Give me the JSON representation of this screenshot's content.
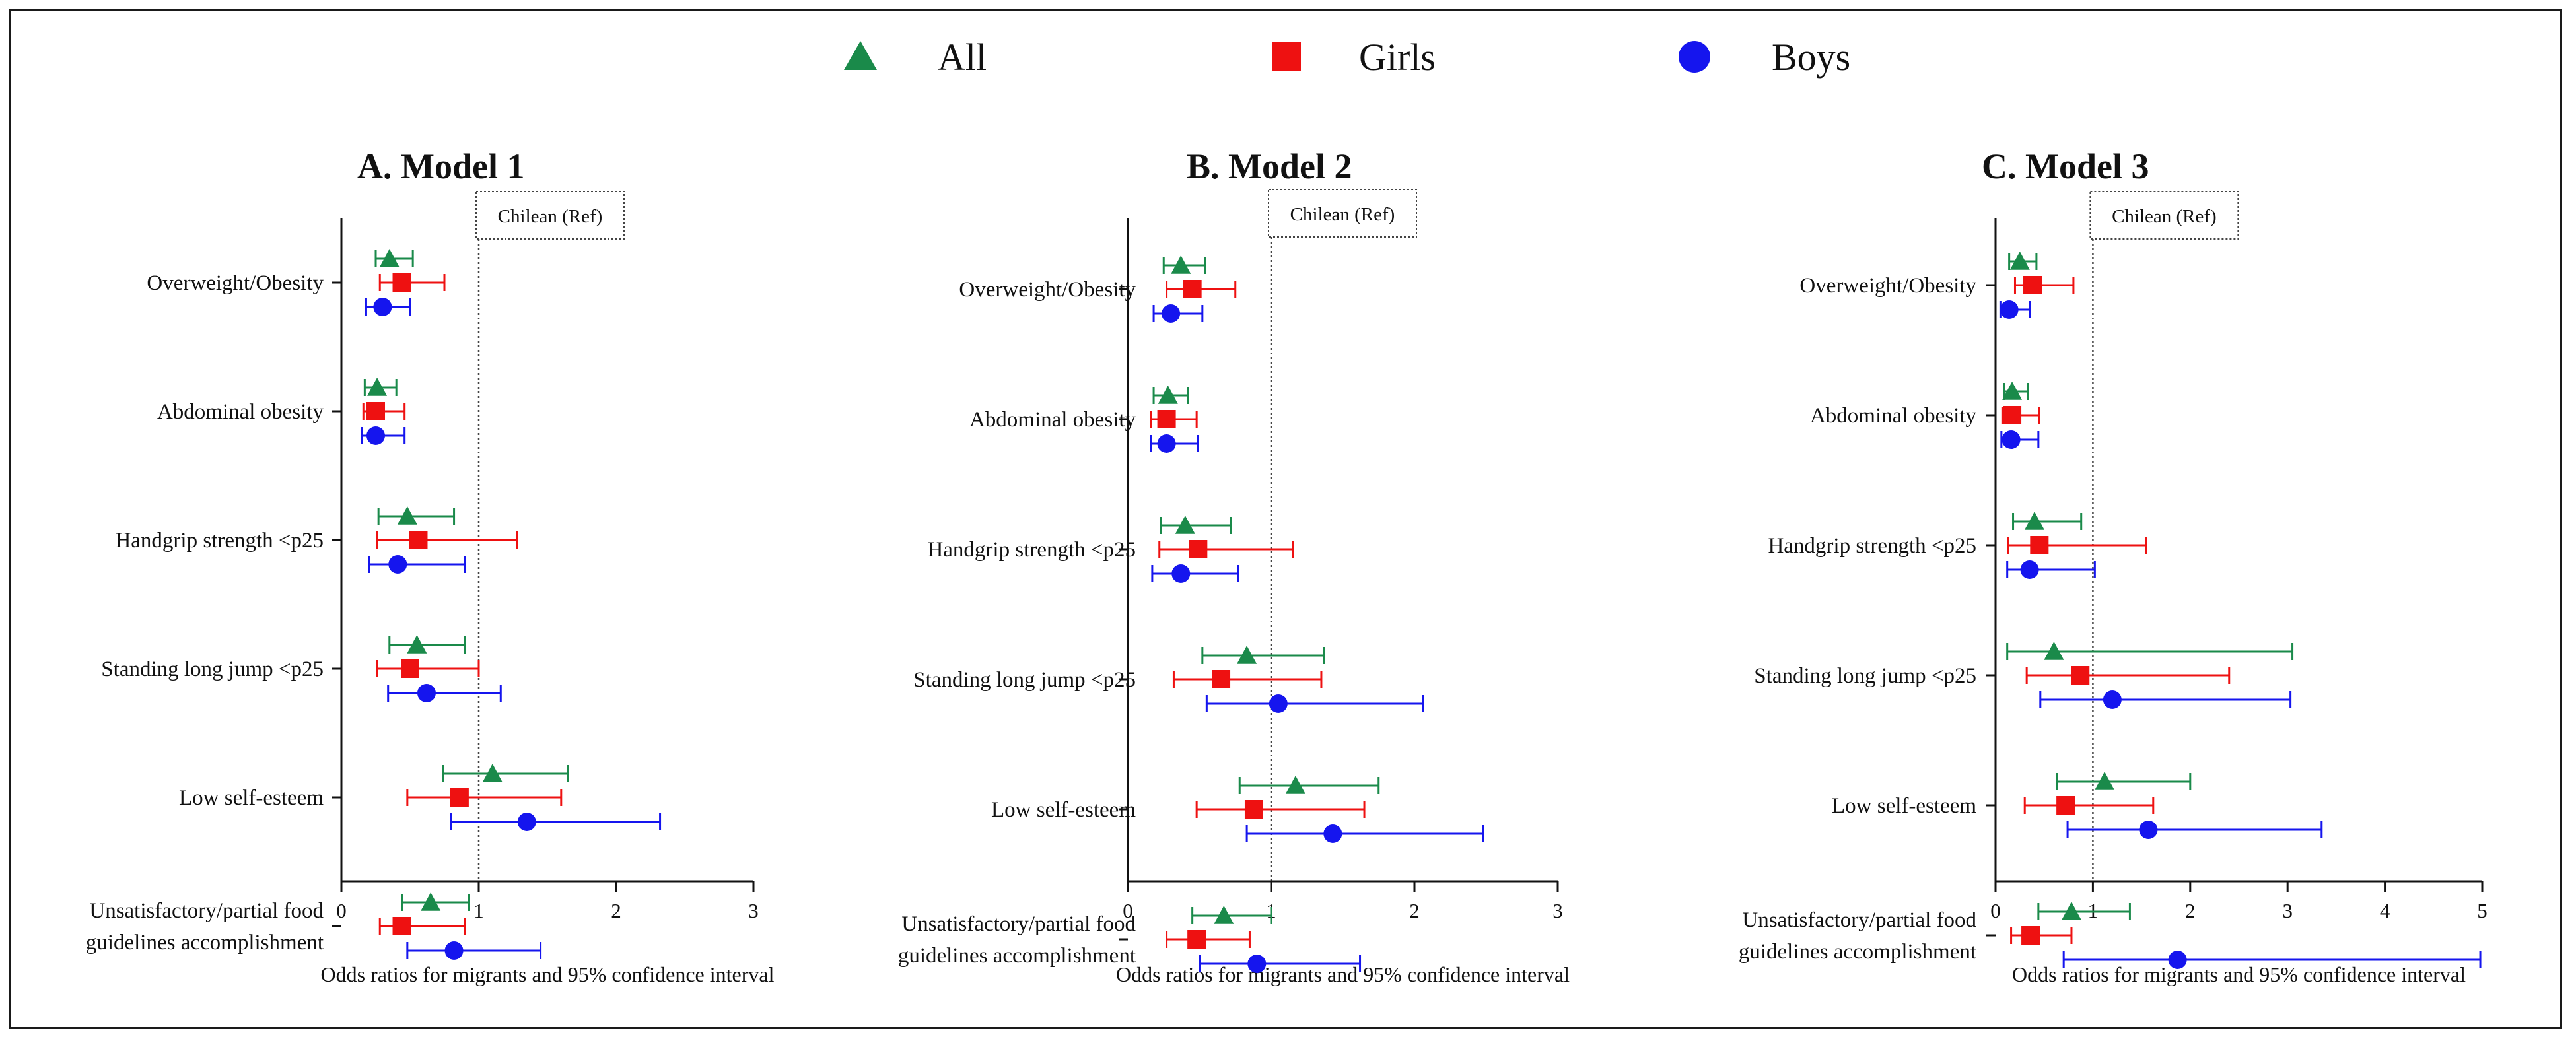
{
  "legend": [
    {
      "name": "All",
      "color": "#1a8a4a",
      "marker": "triangle"
    },
    {
      "name": "Girls",
      "color": "#ee1111",
      "marker": "square"
    },
    {
      "name": "Boys",
      "color": "#1515ee",
      "marker": "circle"
    }
  ],
  "chart_data": [
    {
      "type": "forest",
      "title": "A. Model 1",
      "xlabel": "Odds ratios for migrants and 95% confidence interval",
      "reference_label": "Chilean (Ref)",
      "reference_value": 1,
      "xlim": [
        0,
        3
      ],
      "xticks": [
        "0",
        "1",
        "2",
        "3"
      ],
      "categories": [
        {
          "label_lines": [
            "Overweight/Obesity"
          ],
          "series": {
            "All": {
              "or": 0.35,
              "lo": 0.25,
              "hi": 0.52
            },
            "Girls": {
              "or": 0.44,
              "lo": 0.28,
              "hi": 0.75
            },
            "Boys": {
              "or": 0.3,
              "lo": 0.18,
              "hi": 0.5
            }
          }
        },
        {
          "label_lines": [
            "Abdominal obesity"
          ],
          "series": {
            "All": {
              "or": 0.26,
              "lo": 0.17,
              "hi": 0.4
            },
            "Girls": {
              "or": 0.25,
              "lo": 0.16,
              "hi": 0.46
            },
            "Boys": {
              "or": 0.25,
              "lo": 0.15,
              "hi": 0.46
            }
          }
        },
        {
          "label_lines": [
            "Handgrip strength <p25"
          ],
          "series": {
            "All": {
              "or": 0.48,
              "lo": 0.27,
              "hi": 0.82
            },
            "Girls": {
              "or": 0.56,
              "lo": 0.26,
              "hi": 1.28
            },
            "Boys": {
              "or": 0.41,
              "lo": 0.2,
              "hi": 0.9
            }
          }
        },
        {
          "label_lines": [
            "Standing long jump <p25"
          ],
          "series": {
            "All": {
              "or": 0.55,
              "lo": 0.35,
              "hi": 0.9
            },
            "Girls": {
              "or": 0.5,
              "lo": 0.26,
              "hi": 1.0
            },
            "Boys": {
              "or": 0.62,
              "lo": 0.34,
              "hi": 1.16
            }
          }
        },
        {
          "label_lines": [
            "Low self-esteem"
          ],
          "series": {
            "All": {
              "or": 1.1,
              "lo": 0.74,
              "hi": 1.65
            },
            "Girls": {
              "or": 0.86,
              "lo": 0.48,
              "hi": 1.6
            },
            "Boys": {
              "or": 1.35,
              "lo": 0.8,
              "hi": 2.32
            }
          }
        },
        {
          "label_lines": [
            "Unsatisfactory/partial food",
            "guidelines accomplishment"
          ],
          "series": {
            "All": {
              "or": 0.65,
              "lo": 0.44,
              "hi": 0.93
            },
            "Girls": {
              "or": 0.44,
              "lo": 0.28,
              "hi": 0.9
            },
            "Boys": {
              "or": 0.82,
              "lo": 0.48,
              "hi": 1.45
            }
          }
        }
      ]
    },
    {
      "type": "forest",
      "title": "B. Model 2",
      "xlabel": "Odds ratios for migrants and 95% confidence interval",
      "reference_label": "Chilean (Ref)",
      "reference_value": 1,
      "xlim": [
        0,
        3
      ],
      "xticks": [
        "0",
        "1",
        "2",
        "3"
      ],
      "categories": [
        {
          "label_lines": [
            "Overweight/Obesity"
          ],
          "series": {
            "All": {
              "or": 0.37,
              "lo": 0.25,
              "hi": 0.54
            },
            "Girls": {
              "or": 0.45,
              "lo": 0.27,
              "hi": 0.75
            },
            "Boys": {
              "or": 0.3,
              "lo": 0.18,
              "hi": 0.52
            }
          }
        },
        {
          "label_lines": [
            "Abdominal obesity"
          ],
          "series": {
            "All": {
              "or": 0.28,
              "lo": 0.18,
              "hi": 0.42
            },
            "Girls": {
              "or": 0.27,
              "lo": 0.16,
              "hi": 0.48
            },
            "Boys": {
              "or": 0.27,
              "lo": 0.16,
              "hi": 0.49
            }
          }
        },
        {
          "label_lines": [
            "Handgrip strength <p25"
          ],
          "series": {
            "All": {
              "or": 0.4,
              "lo": 0.23,
              "hi": 0.72
            },
            "Girls": {
              "or": 0.49,
              "lo": 0.22,
              "hi": 1.15
            },
            "Boys": {
              "or": 0.37,
              "lo": 0.17,
              "hi": 0.77
            }
          }
        },
        {
          "label_lines": [
            "Standing long jump <p25"
          ],
          "series": {
            "All": {
              "or": 0.83,
              "lo": 0.52,
              "hi": 1.37
            },
            "Girls": {
              "or": 0.65,
              "lo": 0.32,
              "hi": 1.35
            },
            "Boys": {
              "or": 1.05,
              "lo": 0.55,
              "hi": 2.06
            }
          }
        },
        {
          "label_lines": [
            "Low self-esteem"
          ],
          "series": {
            "All": {
              "or": 1.17,
              "lo": 0.78,
              "hi": 1.75
            },
            "Girls": {
              "or": 0.88,
              "lo": 0.48,
              "hi": 1.65
            },
            "Boys": {
              "or": 1.43,
              "lo": 0.83,
              "hi": 2.48
            }
          }
        },
        {
          "label_lines": [
            "Unsatisfactory/partial food",
            "guidelines accomplishment"
          ],
          "series": {
            "All": {
              "or": 0.67,
              "lo": 0.45,
              "hi": 1.0
            },
            "Girls": {
              "or": 0.48,
              "lo": 0.27,
              "hi": 0.85
            },
            "Boys": {
              "or": 0.9,
              "lo": 0.5,
              "hi": 1.62
            }
          }
        }
      ]
    },
    {
      "type": "forest",
      "title": "C. Model 3",
      "xlabel": "Odds ratios for migrants and 95% confidence interval",
      "reference_label": "Chilean (Ref)",
      "reference_value": 1,
      "xlim": [
        0,
        5
      ],
      "xticks": [
        "0",
        "1",
        "2",
        "3",
        "4",
        "5"
      ],
      "categories": [
        {
          "label_lines": [
            "Overweight/Obesity"
          ],
          "series": {
            "All": {
              "or": 0.25,
              "lo": 0.14,
              "hi": 0.42
            },
            "Girls": {
              "or": 0.38,
              "lo": 0.2,
              "hi": 0.8
            },
            "Boys": {
              "or": 0.14,
              "lo": 0.05,
              "hi": 0.35
            }
          }
        },
        {
          "label_lines": [
            "Abdominal obesity"
          ],
          "series": {
            "All": {
              "or": 0.17,
              "lo": 0.09,
              "hi": 0.33
            },
            "Girls": {
              "or": 0.17,
              "lo": 0.07,
              "hi": 0.45
            },
            "Boys": {
              "or": 0.16,
              "lo": 0.06,
              "hi": 0.44
            }
          }
        },
        {
          "label_lines": [
            "Handgrip strength <p25"
          ],
          "series": {
            "All": {
              "or": 0.4,
              "lo": 0.18,
              "hi": 0.88
            },
            "Girls": {
              "or": 0.45,
              "lo": 0.13,
              "hi": 1.55
            },
            "Boys": {
              "or": 0.35,
              "lo": 0.12,
              "hi": 1.02
            }
          }
        },
        {
          "label_lines": [
            "Standing long jump <p25"
          ],
          "series": {
            "All": {
              "or": 0.6,
              "lo": 0.12,
              "hi": 3.05
            },
            "Girls": {
              "or": 0.87,
              "lo": 0.32,
              "hi": 2.4
            },
            "Boys": {
              "or": 1.2,
              "lo": 0.46,
              "hi": 3.03
            }
          }
        },
        {
          "label_lines": [
            "Low self-esteem"
          ],
          "series": {
            "All": {
              "or": 1.12,
              "lo": 0.63,
              "hi": 2.0
            },
            "Girls": {
              "or": 0.72,
              "lo": 0.3,
              "hi": 1.62
            },
            "Boys": {
              "or": 1.57,
              "lo": 0.74,
              "hi": 3.35
            }
          }
        },
        {
          "label_lines": [
            "Unsatisfactory/partial food",
            "guidelines accomplishment"
          ],
          "series": {
            "All": {
              "or": 0.78,
              "lo": 0.44,
              "hi": 1.38
            },
            "Girls": {
              "or": 0.36,
              "lo": 0.16,
              "hi": 0.78
            },
            "Boys": {
              "or": 1.87,
              "lo": 0.7,
              "hi": 4.98
            }
          }
        }
      ]
    }
  ]
}
